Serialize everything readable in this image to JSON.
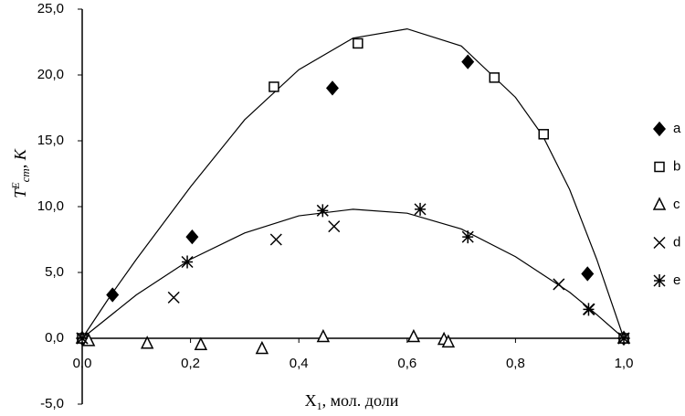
{
  "chart_data": {
    "type": "scatter",
    "xlabel": {
      "main": "X",
      "sub": "1",
      "rest": ", мол. доли"
    },
    "ylabel": {
      "main": "T",
      "sup": "E",
      "sub": "cm",
      "rest": ", K"
    },
    "xlim": [
      0,
      1
    ],
    "ylim": [
      -5,
      25
    ],
    "xticks": [
      {
        "value": 0,
        "label": "0,0"
      },
      {
        "value": 0.2,
        "label": "0,2"
      },
      {
        "value": 0.4,
        "label": "0,4"
      },
      {
        "value": 0.6,
        "label": "0,6"
      },
      {
        "value": 0.8,
        "label": "0,8"
      },
      {
        "value": 1,
        "label": "1,0"
      }
    ],
    "yticks": [
      {
        "value": -5,
        "label": "-5,0"
      },
      {
        "value": 0,
        "label": "0,0"
      },
      {
        "value": 5,
        "label": "5,0"
      },
      {
        "value": 10,
        "label": "10,0"
      },
      {
        "value": 15,
        "label": "15,0"
      },
      {
        "value": 20,
        "label": "20,0"
      },
      {
        "value": 25,
        "label": "25,0"
      }
    ],
    "grid": false,
    "legend": "right",
    "series": [
      {
        "name": "a",
        "color": "#000000",
        "marker": "diamond",
        "x": [
          0,
          0.056,
          0.203,
          0.462,
          0.712,
          0.933,
          1.0
        ],
        "values": [
          0,
          3.3,
          7.7,
          19.0,
          21.0,
          4.9,
          0
        ]
      },
      {
        "name": "b",
        "color": "#000000",
        "marker": "square",
        "x": [
          0,
          0.354,
          0.509,
          0.761,
          0.852,
          1.0
        ],
        "values": [
          0,
          19.1,
          22.4,
          19.8,
          15.5,
          0
        ]
      },
      {
        "name": "c",
        "color": "#000000",
        "marker": "triangle",
        "x": [
          0,
          0.012,
          0.12,
          0.219,
          0.332,
          0.445,
          0.612,
          0.668,
          0.676,
          1.0
        ],
        "values": [
          0,
          -0.2,
          -0.4,
          -0.5,
          -0.8,
          0.1,
          0.1,
          -0.1,
          -0.3,
          0
        ]
      },
      {
        "name": "d",
        "color": "#000000",
        "marker": "x",
        "x": [
          0,
          0.169,
          0.358,
          0.465,
          0.88,
          0.936,
          1.0
        ],
        "values": [
          0,
          3.1,
          7.5,
          8.5,
          4.1,
          2.2,
          0
        ]
      },
      {
        "name": "e",
        "color": "#000000",
        "marker": "asterisk",
        "x": [
          0,
          0.194,
          0.444,
          0.624,
          0.712,
          0.935,
          1.0
        ],
        "values": [
          0,
          5.8,
          9.7,
          9.8,
          7.7,
          2.2,
          0
        ]
      }
    ],
    "curves": [
      {
        "color": "#000000",
        "x": [
          0,
          0.05,
          0.1,
          0.2,
          0.3,
          0.4,
          0.5,
          0.6,
          0.7,
          0.8,
          0.85,
          0.9,
          0.95,
          1.0
        ],
        "values": [
          0,
          3.1,
          6.0,
          11.5,
          16.6,
          20.4,
          22.8,
          23.5,
          22.2,
          18.3,
          15.4,
          11.3,
          6.0,
          0
        ]
      },
      {
        "color": "#000000",
        "x": [
          0,
          0.1,
          0.2,
          0.3,
          0.4,
          0.5,
          0.6,
          0.7,
          0.8,
          0.9,
          0.95,
          1.0
        ],
        "values": [
          0,
          3.3,
          6.0,
          8.0,
          9.3,
          9.8,
          9.5,
          8.3,
          6.2,
          3.5,
          1.8,
          0
        ]
      }
    ]
  }
}
